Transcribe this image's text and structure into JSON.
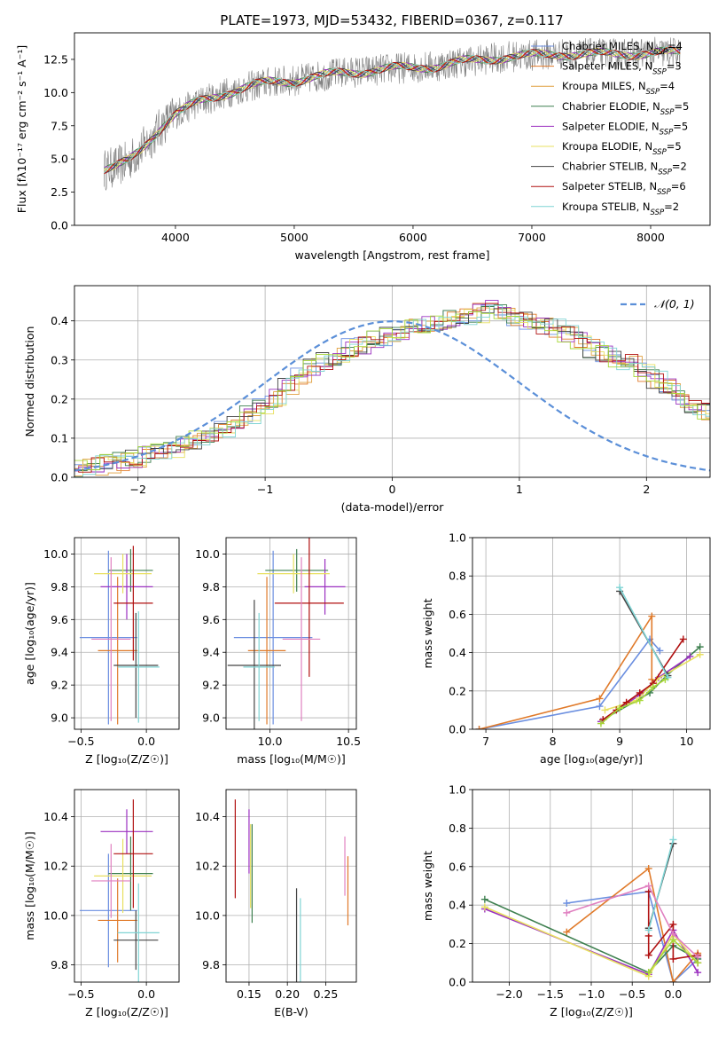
{
  "figure": {
    "title": "PLATE=1973, MJD=53432, FIBERID=0367, z=0.117"
  },
  "colors": {
    "Chabrier MILES": "#6a8ee0",
    "Salpeter MILES": "#e07a2a",
    "Kroupa MILES": "#e0a040",
    "Chabrier ELODIE": "#3f8050",
    "Salpeter ELODIE": "#9b30c0",
    "Kroupa ELODIE": "#e8e060",
    "Chabrier STELIB": "#444444",
    "Salpeter STELIB": "#b01010",
    "Kroupa STELIB": "#7fd4d4",
    "extra_lime": "#a8d838",
    "extra_pink": "#e080c0",
    "gauss": "#5b8fd8",
    "data_spec": "#808080"
  },
  "chart_data": [
    {
      "id": "spectrum",
      "type": "line",
      "title": "PLATE=1973, MJD=53432, FIBERID=0367, z=0.117",
      "xlabel": "wavelength [Angstrom, rest frame]",
      "ylabel": "Flux [fλ10⁻¹⁷ erg cm⁻² s⁻¹ A⁻¹]",
      "xlim": [
        3150,
        8500
      ],
      "ylim": [
        0,
        14.5
      ],
      "xticks": [
        4000,
        5000,
        6000,
        7000,
        8000
      ],
      "yticks": [
        0.0,
        2.5,
        5.0,
        7.5,
        10.0,
        12.5
      ],
      "grid": false,
      "legend_position": "right",
      "continuum_x": [
        3400,
        3500,
        3600,
        3700,
        3800,
        3900,
        4000,
        4200,
        4400,
        4600,
        4800,
        5000,
        5200,
        5400,
        5600,
        5800,
        6000,
        6200,
        6400,
        6600,
        6800,
        7000,
        7200,
        7400,
        7600,
        7800,
        8000,
        8250
      ],
      "continuum_y": [
        4.2,
        4.4,
        4.8,
        5.6,
        6.6,
        7.6,
        8.4,
        9.3,
        9.9,
        10.4,
        10.8,
        10.9,
        11.2,
        11.5,
        11.6,
        11.8,
        11.9,
        12.0,
        12.3,
        12.5,
        12.7,
        12.8,
        12.9,
        12.9,
        12.9,
        12.9,
        13.0,
        13.0
      ],
      "series": [
        {
          "name": "Chabrier MILES, N_SSP=4",
          "label": "Chabrier MILES, N",
          "sub": "SSP",
          "suffix": "=4",
          "color_key": "Chabrier MILES"
        },
        {
          "name": "Salpeter MILES, N_SSP=3",
          "label": "Salpeter MILES, N",
          "sub": "SSP",
          "suffix": "=3",
          "color_key": "Salpeter MILES"
        },
        {
          "name": "Kroupa MILES, N_SSP=4",
          "label": "Kroupa MILES, N",
          "sub": "SSP",
          "suffix": "=4",
          "color_key": "Kroupa MILES"
        },
        {
          "name": "Chabrier ELODIE, N_SSP=5",
          "label": "Chabrier ELODIE, N",
          "sub": "SSP",
          "suffix": "=5",
          "color_key": "Chabrier ELODIE"
        },
        {
          "name": "Salpeter ELODIE, N_SSP=5",
          "label": "Salpeter ELODIE, N",
          "sub": "SSP",
          "suffix": "=5",
          "color_key": "Salpeter ELODIE"
        },
        {
          "name": "Kroupa ELODIE, N_SSP=5",
          "label": "Kroupa ELODIE, N",
          "sub": "SSP",
          "suffix": "=5",
          "color_key": "Kroupa ELODIE"
        },
        {
          "name": "Chabrier STELIB, N_SSP=2",
          "label": "Chabrier STELIB, N",
          "sub": "SSP",
          "suffix": "=2",
          "color_key": "Chabrier STELIB"
        },
        {
          "name": "Salpeter STELIB, N_SSP=6",
          "label": "Salpeter STELIB, N",
          "sub": "SSP",
          "suffix": "=6",
          "color_key": "Salpeter STELIB"
        },
        {
          "name": "Kroupa STELIB, N_SSP=2",
          "label": "Kroupa STELIB, N",
          "sub": "SSP",
          "suffix": "=2",
          "color_key": "Kroupa STELIB"
        }
      ]
    },
    {
      "id": "residuals",
      "type": "line",
      "xlabel": "(data-model)/error",
      "ylabel": "Normed distribution",
      "xlim": [
        -2.5,
        2.5
      ],
      "ylim": [
        0,
        0.49
      ],
      "xticks": [
        -2,
        -1,
        0,
        1,
        2
      ],
      "yticks": [
        0.0,
        0.1,
        0.2,
        0.3,
        0.4
      ],
      "grid": true,
      "legend": "𝒩(0, 1)",
      "legend_position": "upper right",
      "bin_width": 0.1,
      "base_profile": [
        0.025,
        0.028,
        0.03,
        0.035,
        0.04,
        0.048,
        0.055,
        0.062,
        0.07,
        0.082,
        0.095,
        0.108,
        0.12,
        0.14,
        0.16,
        0.18,
        0.2,
        0.23,
        0.26,
        0.28,
        0.3,
        0.31,
        0.33,
        0.34,
        0.35,
        0.36,
        0.37,
        0.38,
        0.39,
        0.4,
        0.405,
        0.41,
        0.42,
        0.43,
        0.42,
        0.41,
        0.4,
        0.39,
        0.38,
        0.37,
        0.35,
        0.33,
        0.32,
        0.3,
        0.29,
        0.27,
        0.25,
        0.23,
        0.2,
        0.18,
        0.17,
        0.15,
        0.13,
        0.11,
        0.1,
        0.08,
        0.075,
        0.065,
        0.055,
        0.045,
        0.04,
        0.035,
        0.03,
        0.025,
        0.025
      ],
      "gauss_range": [
        -2.5,
        2.5
      ]
    },
    {
      "id": "age_vs_Z",
      "type": "scatter",
      "xlabel": "Z [log₁₀(Z/Z☉)]",
      "ylabel": "age  [log₁₀(age/yr)]",
      "xlim": [
        -0.55,
        0.25
      ],
      "ylim": [
        8.93,
        10.1
      ],
      "xticks": [
        -0.5,
        0.0
      ],
      "yticks": [
        9.0,
        9.2,
        9.4,
        9.6,
        9.8,
        10.0
      ],
      "grid": true,
      "points": [
        {
          "color_key": "Chabrier MILES",
          "x": -0.29,
          "xerr": 0.22,
          "y": 9.49,
          "yerr": 0.53
        },
        {
          "color_key": "Salpeter MILES",
          "x": -0.22,
          "xerr": 0.15,
          "y": 9.41,
          "yerr": 0.45
        },
        {
          "color_key": "Chabrier ELODIE",
          "x": -0.12,
          "xerr": 0.17,
          "y": 9.9,
          "yerr": 0.13
        },
        {
          "color_key": "Salpeter ELODIE",
          "x": -0.15,
          "xerr": 0.2,
          "y": 9.8,
          "yerr": 0.2
        },
        {
          "color_key": "Kroupa ELODIE",
          "x": -0.18,
          "xerr": 0.22,
          "y": 9.88,
          "yerr": 0.12
        },
        {
          "color_key": "Chabrier STELIB",
          "x": -0.08,
          "xerr": 0.17,
          "y": 9.32,
          "yerr": 0.32
        },
        {
          "color_key": "Salpeter STELIB",
          "x": -0.1,
          "xerr": 0.15,
          "y": 9.7,
          "yerr": 0.35
        },
        {
          "color_key": "Kroupa STELIB",
          "x": -0.06,
          "xerr": 0.16,
          "y": 9.31,
          "yerr": 0.34
        },
        {
          "color_key": "extra_pink",
          "x": -0.27,
          "xerr": 0.15,
          "y": 9.48,
          "yerr": 0.5
        }
      ]
    },
    {
      "id": "age_vs_mass",
      "type": "scatter",
      "xlabel": "mass [log₁₀(M/M☉)]",
      "ylabel": "",
      "xlim": [
        9.72,
        10.55
      ],
      "ylim": [
        8.93,
        10.1
      ],
      "xticks": [
        10.0,
        10.5
      ],
      "yticks": [
        9.0,
        9.2,
        9.4,
        9.6,
        9.8,
        10.0
      ],
      "grid": true,
      "points": [
        {
          "color_key": "Chabrier MILES",
          "x": 10.02,
          "xerr": 0.25,
          "y": 9.49,
          "yerr": 0.53
        },
        {
          "color_key": "Salpeter MILES",
          "x": 9.98,
          "xerr": 0.12,
          "y": 9.41,
          "yerr": 0.45
        },
        {
          "color_key": "Chabrier ELODIE",
          "x": 10.17,
          "xerr": 0.2,
          "y": 9.9,
          "yerr": 0.13
        },
        {
          "color_key": "Salpeter ELODIE",
          "x": 10.35,
          "xerr": 0.13,
          "y": 9.8,
          "yerr": 0.17
        },
        {
          "color_key": "Kroupa ELODIE",
          "x": 10.15,
          "xerr": 0.23,
          "y": 9.88,
          "yerr": 0.12
        },
        {
          "color_key": "Chabrier STELIB",
          "x": 9.9,
          "xerr": 0.17,
          "y": 9.32,
          "yerr": 0.4
        },
        {
          "color_key": "Salpeter STELIB",
          "x": 10.25,
          "xerr": 0.22,
          "y": 9.7,
          "yerr": 0.45
        },
        {
          "color_key": "Kroupa STELIB",
          "x": 9.93,
          "xerr": 0.1,
          "y": 9.31,
          "yerr": 0.33
        },
        {
          "color_key": "extra_pink",
          "x": 10.2,
          "xerr": 0.12,
          "y": 9.48,
          "yerr": 0.5
        }
      ]
    },
    {
      "id": "weight_vs_age",
      "type": "line",
      "xlabel": "age  [log₁₀(age/yr)]",
      "ylabel": "mass weight",
      "xlim": [
        6.8,
        10.35
      ],
      "ylim": [
        0,
        1.0
      ],
      "xticks": [
        7,
        8,
        9,
        10
      ],
      "yticks": [
        0.0,
        0.2,
        0.4,
        0.6,
        0.8,
        1.0
      ],
      "grid": true,
      "series": [
        {
          "color_key": "Chabrier MILES",
          "x": [
            6.9,
            8.7,
            9.45,
            9.6
          ],
          "y": [
            0.0,
            0.12,
            0.47,
            0.41
          ]
        },
        {
          "color_key": "Salpeter MILES",
          "x": [
            6.9,
            8.7,
            9.48,
            9.48
          ],
          "y": [
            0.0,
            0.16,
            0.59,
            0.26
          ]
        },
        {
          "color_key": "Chabrier ELODIE",
          "x": [
            8.75,
            9.45,
            9.7,
            10.2
          ],
          "y": [
            0.05,
            0.19,
            0.28,
            0.43
          ]
        },
        {
          "color_key": "Salpeter ELODIE",
          "x": [
            8.72,
            9.3,
            9.58,
            10.05
          ],
          "y": [
            0.04,
            0.18,
            0.27,
            0.38
          ]
        },
        {
          "color_key": "Kroupa ELODIE",
          "x": [
            8.78,
            9.25,
            9.55,
            10.2
          ],
          "y": [
            0.1,
            0.15,
            0.26,
            0.39
          ]
        },
        {
          "color_key": "Chabrier STELIB",
          "x": [
            9.0,
            9.72
          ],
          "y": [
            0.72,
            0.28
          ]
        },
        {
          "color_key": "Salpeter STELIB",
          "x": [
            8.75,
            8.95,
            9.1,
            9.3,
            9.5,
            9.95
          ],
          "y": [
            0.05,
            0.1,
            0.14,
            0.19,
            0.24,
            0.47
          ]
        },
        {
          "color_key": "Kroupa STELIB",
          "x": [
            9.0,
            9.72
          ],
          "y": [
            0.74,
            0.27
          ]
        },
        {
          "color_key": "extra_lime",
          "x": [
            8.72,
            9.0,
            9.3,
            9.5,
            9.68
          ],
          "y": [
            0.03,
            0.11,
            0.15,
            0.22,
            0.26
          ]
        }
      ]
    },
    {
      "id": "mass_vs_Z",
      "type": "scatter",
      "xlabel": "Z [log₁₀(Z/Z☉)]",
      "ylabel": "mass [log₁₀(M/M☉)]",
      "xlim": [
        -0.55,
        0.25
      ],
      "ylim": [
        9.73,
        10.51
      ],
      "xticks": [
        -0.5,
        0.0
      ],
      "yticks": [
        9.8,
        10.0,
        10.2,
        10.4
      ],
      "grid": true,
      "points": [
        {
          "color_key": "Chabrier MILES",
          "x": -0.29,
          "xerr": 0.22,
          "y": 10.02,
          "yerr": 0.23
        },
        {
          "color_key": "Salpeter MILES",
          "x": -0.22,
          "xerr": 0.15,
          "y": 9.98,
          "yerr": 0.17
        },
        {
          "color_key": "Chabrier ELODIE",
          "x": -0.12,
          "xerr": 0.17,
          "y": 10.17,
          "yerr": 0.15
        },
        {
          "color_key": "Salpeter ELODIE",
          "x": -0.15,
          "xerr": 0.2,
          "y": 10.34,
          "yerr": 0.09
        },
        {
          "color_key": "Kroupa ELODIE",
          "x": -0.18,
          "xerr": 0.22,
          "y": 10.16,
          "yerr": 0.15
        },
        {
          "color_key": "Chabrier STELIB",
          "x": -0.08,
          "xerr": 0.17,
          "y": 9.9,
          "yerr": 0.12
        },
        {
          "color_key": "Salpeter STELIB",
          "x": -0.1,
          "xerr": 0.15,
          "y": 10.25,
          "yerr": 0.22
        },
        {
          "color_key": "Kroupa STELIB",
          "x": -0.06,
          "xerr": 0.16,
          "y": 9.93,
          "yerr": 0.2
        },
        {
          "color_key": "extra_pink",
          "x": -0.27,
          "xerr": 0.15,
          "y": 10.14,
          "yerr": 0.15
        }
      ]
    },
    {
      "id": "mass_vs_ebv",
      "type": "scatter",
      "xlabel": "E(B-V)",
      "ylabel": "",
      "xlim": [
        0.12,
        0.29
      ],
      "ylim": [
        9.73,
        10.51
      ],
      "xticks": [
        0.15,
        0.2,
        0.25
      ],
      "yticks": [
        9.8,
        10.0,
        10.2,
        10.4
      ],
      "grid": true,
      "points": [
        {
          "color_key": "Salpeter STELIB",
          "x": 0.132,
          "y": 10.27,
          "yerr": 0.2
        },
        {
          "color_key": "Salpeter ELODIE",
          "x": 0.15,
          "y": 10.3,
          "yerr": 0.13
        },
        {
          "color_key": "Kroupa ELODIE",
          "x": 0.152,
          "y": 10.2,
          "yerr": 0.17
        },
        {
          "color_key": "Chabrier ELODIE",
          "x": 0.154,
          "y": 10.17,
          "yerr": 0.2
        },
        {
          "color_key": "Chabrier STELIB",
          "x": 0.212,
          "y": 9.91,
          "yerr": 0.2
        },
        {
          "color_key": "Kroupa STELIB",
          "x": 0.217,
          "y": 9.9,
          "yerr": 0.17
        },
        {
          "color_key": "extra_pink",
          "x": 0.275,
          "y": 10.2,
          "yerr": 0.12
        },
        {
          "color_key": "Salpeter MILES",
          "x": 0.279,
          "y": 10.1,
          "yerr": 0.14
        }
      ]
    },
    {
      "id": "weight_vs_Z",
      "type": "line",
      "xlabel": "Z [log₁₀(Z/Z☉)]",
      "ylabel": "mass weight",
      "xlim": [
        -2.45,
        0.45
      ],
      "ylim": [
        0,
        1.0
      ],
      "xticks": [
        -2.0,
        -1.5,
        -1.0,
        -0.5,
        0.0
      ],
      "yticks": [
        0.0,
        0.2,
        0.4,
        0.6,
        0.8,
        1.0
      ],
      "grid": true,
      "series": [
        {
          "color_key": "Chabrier MILES",
          "x": [
            -1.3,
            -0.3,
            0.0,
            0.3
          ],
          "y": [
            0.41,
            0.47,
            0.0,
            0.12
          ]
        },
        {
          "color_key": "Salpeter MILES",
          "x": [
            -1.3,
            -0.3,
            0.0,
            0.3
          ],
          "y": [
            0.26,
            0.59,
            0.0,
            0.15
          ]
        },
        {
          "color_key": "Chabrier ELODIE",
          "x": [
            -2.3,
            -0.3,
            0.0,
            0.3
          ],
          "y": [
            0.43,
            0.05,
            0.19,
            0.12
          ]
        },
        {
          "color_key": "Salpeter ELODIE",
          "x": [
            -2.3,
            -0.3,
            0.0,
            0.3
          ],
          "y": [
            0.38,
            0.04,
            0.27,
            0.05
          ]
        },
        {
          "color_key": "Kroupa ELODIE",
          "x": [
            -2.3,
            -0.3,
            0.0,
            0.3
          ],
          "y": [
            0.39,
            0.03,
            0.25,
            0.1
          ]
        },
        {
          "color_key": "Chabrier STELIB",
          "x": [
            -0.3,
            0.0
          ],
          "y": [
            0.28,
            0.72
          ]
        },
        {
          "color_key": "Salpeter STELIB",
          "x": [
            -0.3,
            -0.3,
            -0.3,
            0.0,
            0.0,
            0.3,
            0.3
          ],
          "y": [
            0.47,
            0.24,
            0.14,
            0.3,
            0.12,
            0.14,
            0.1
          ]
        },
        {
          "color_key": "Kroupa STELIB",
          "x": [
            -0.3,
            0.0
          ],
          "y": [
            0.27,
            0.74
          ]
        },
        {
          "color_key": "extra_pink",
          "x": [
            -1.3,
            -0.3,
            0.0,
            0.3
          ],
          "y": [
            0.36,
            0.5,
            0.25,
            0.13
          ]
        },
        {
          "color_key": "extra_lime",
          "x": [
            -0.3,
            0.0,
            0.3
          ],
          "y": [
            0.05,
            0.22,
            0.1
          ]
        }
      ]
    }
  ]
}
